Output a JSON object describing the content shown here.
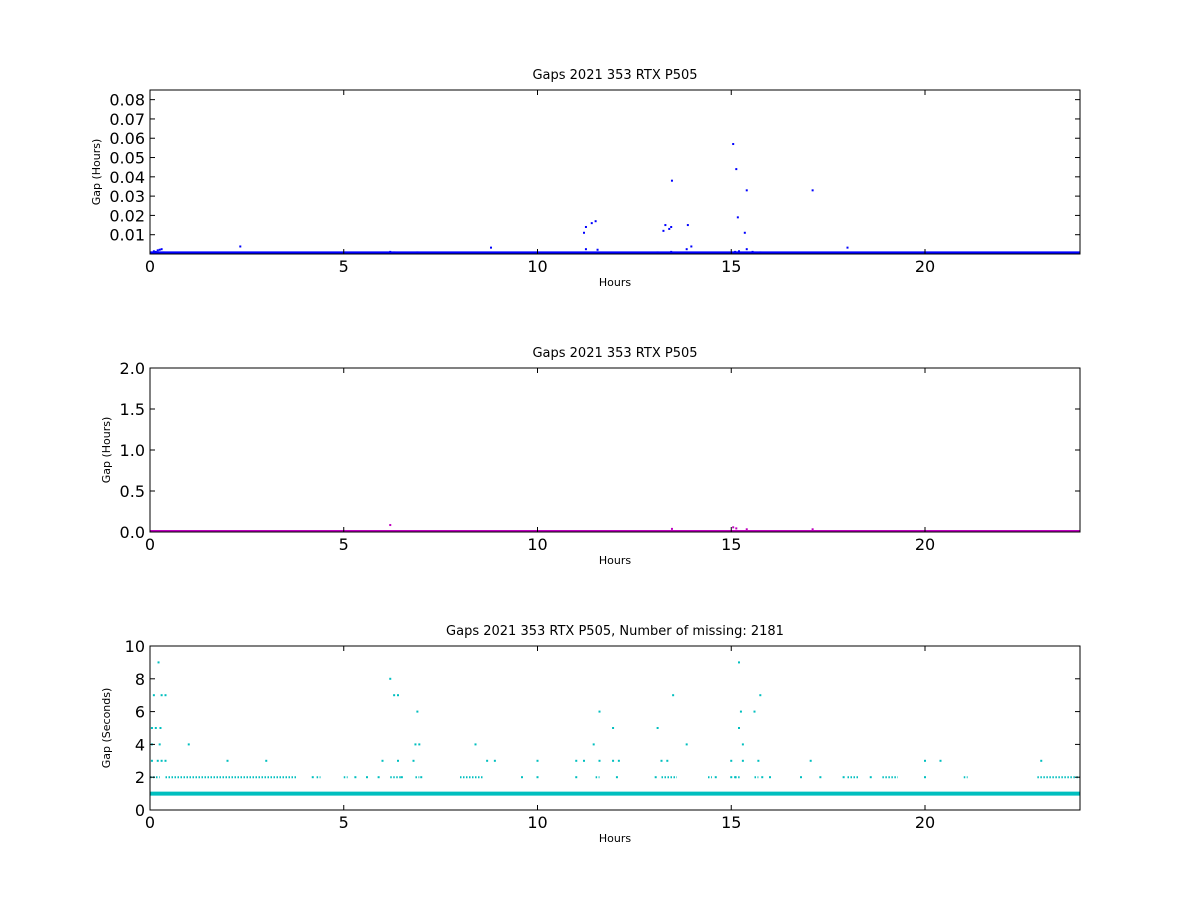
{
  "chart_data": [
    {
      "type": "scatter",
      "title": "Gaps 2021 353 RTX  P505",
      "xlabel": "Hours",
      "ylabel": "Gap (Hours)",
      "xlim": [
        0,
        24
      ],
      "ylim": [
        0,
        0.085
      ],
      "xticks": [
        0,
        5,
        10,
        15,
        20
      ],
      "xtick_labels": [
        "0",
        "5",
        "10",
        "15",
        "20"
      ],
      "yticks": [
        0.01,
        0.02,
        0.03,
        0.04,
        0.05,
        0.06,
        0.07,
        0.08
      ],
      "ytick_labels": [
        "0.01",
        "0.02",
        "0.03",
        "0.04",
        "0.05",
        "0.06",
        "0.07",
        "0.08"
      ],
      "grid": false,
      "color": "#0000ff",
      "baseline": {
        "y": 0.0003,
        "x_range": [
          0,
          24
        ]
      },
      "points": [
        {
          "x": 0.05,
          "y": 0.0008
        },
        {
          "x": 0.1,
          "y": 0.0014
        },
        {
          "x": 0.15,
          "y": 0.0011
        },
        {
          "x": 0.2,
          "y": 0.0019
        },
        {
          "x": 0.25,
          "y": 0.0022
        },
        {
          "x": 0.3,
          "y": 0.0025
        },
        {
          "x": 0.35,
          "y": 0.0008
        },
        {
          "x": 2.33,
          "y": 0.0039
        },
        {
          "x": 6.2,
          "y": 0.0011
        },
        {
          "x": 6.3,
          "y": 0.0008
        },
        {
          "x": 6.9,
          "y": 0.0008
        },
        {
          "x": 8.8,
          "y": 0.0033
        },
        {
          "x": 11.2,
          "y": 0.011
        },
        {
          "x": 11.25,
          "y": 0.014
        },
        {
          "x": 11.25,
          "y": 0.0025
        },
        {
          "x": 11.4,
          "y": 0.016
        },
        {
          "x": 11.5,
          "y": 0.017
        },
        {
          "x": 11.55,
          "y": 0.0022
        },
        {
          "x": 11.55,
          "y": 0.0008
        },
        {
          "x": 11.95,
          "y": 0.0006
        },
        {
          "x": 13.1,
          "y": 0.0008
        },
        {
          "x": 13.25,
          "y": 0.012
        },
        {
          "x": 13.3,
          "y": 0.015
        },
        {
          "x": 13.4,
          "y": 0.013
        },
        {
          "x": 13.45,
          "y": 0.014
        },
        {
          "x": 13.45,
          "y": 0.0011
        },
        {
          "x": 13.47,
          "y": 0.038
        },
        {
          "x": 13.85,
          "y": 0.0025
        },
        {
          "x": 13.88,
          "y": 0.015
        },
        {
          "x": 13.97,
          "y": 0.0039
        },
        {
          "x": 15.05,
          "y": 0.057
        },
        {
          "x": 15.1,
          "y": 0.0011
        },
        {
          "x": 15.13,
          "y": 0.044
        },
        {
          "x": 15.17,
          "y": 0.019
        },
        {
          "x": 15.2,
          "y": 0.0014
        },
        {
          "x": 15.35,
          "y": 0.011
        },
        {
          "x": 15.4,
          "y": 0.033
        },
        {
          "x": 15.4,
          "y": 0.0025
        },
        {
          "x": 15.55,
          "y": 0.0011
        },
        {
          "x": 15.75,
          "y": 0.0008
        },
        {
          "x": 17.1,
          "y": 0.033
        },
        {
          "x": 18.0,
          "y": 0.0033
        }
      ]
    },
    {
      "type": "scatter",
      "title": "Gaps 2021 353 RTX  P505",
      "xlabel": "Hours",
      "ylabel": "Gap (Hours)",
      "xlim": [
        0,
        24
      ],
      "ylim": [
        0,
        2.0
      ],
      "xticks": [
        0,
        5,
        10,
        15,
        20
      ],
      "xtick_labels": [
        "0",
        "5",
        "10",
        "15",
        "20"
      ],
      "yticks": [
        0.0,
        0.5,
        1.0,
        1.5,
        2.0
      ],
      "ytick_labels": [
        "0.0",
        "0.5",
        "1.0",
        "1.5",
        "2.0"
      ],
      "grid": false,
      "color": "#bf00bf",
      "baseline": {
        "y": 0.0003,
        "x_range": [
          0,
          24
        ]
      },
      "points": [
        {
          "x": 6.2,
          "y": 0.085
        },
        {
          "x": 13.47,
          "y": 0.038
        },
        {
          "x": 15.05,
          "y": 0.057
        },
        {
          "x": 15.13,
          "y": 0.044
        },
        {
          "x": 15.4,
          "y": 0.033
        },
        {
          "x": 17.1,
          "y": 0.033
        }
      ]
    },
    {
      "type": "scatter",
      "title": "Gaps 2021 353 RTX  P505, Number of missing: 2181",
      "xlabel": "Hours",
      "ylabel": "Gap (Seconds)",
      "xlim": [
        0,
        24
      ],
      "ylim": [
        0,
        10
      ],
      "xticks": [
        0,
        5,
        10,
        15,
        20
      ],
      "xtick_labels": [
        "0",
        "5",
        "10",
        "15",
        "20"
      ],
      "yticks": [
        0,
        2,
        4,
        6,
        8,
        10
      ],
      "ytick_labels": [
        "0",
        "2",
        "4",
        "6",
        "8",
        "10"
      ],
      "grid": false,
      "color": "#00bfbf",
      "baseline": {
        "y": 1,
        "x_range": [
          0,
          24
        ]
      },
      "value_2_ranges": [
        [
          0,
          0.25
        ],
        [
          0.4,
          3.8
        ],
        [
          4.3,
          4.4
        ],
        [
          5.0,
          5.1
        ],
        [
          6.2,
          6.5
        ],
        [
          6.85,
          6.95
        ],
        [
          8.0,
          8.6
        ],
        [
          11.5,
          11.6
        ],
        [
          13.2,
          13.6
        ],
        [
          14.4,
          14.5
        ],
        [
          15.1,
          15.25
        ],
        [
          15.6,
          15.7
        ],
        [
          18.0,
          18.3
        ],
        [
          18.9,
          19.3
        ],
        [
          21.0,
          21.1
        ],
        [
          22.9,
          24.0
        ]
      ],
      "points": [
        {
          "x": 0.05,
          "y": 3
        },
        {
          "x": 0.05,
          "y": 4
        },
        {
          "x": 0.05,
          "y": 5
        },
        {
          "x": 0.1,
          "y": 7
        },
        {
          "x": 0.15,
          "y": 5
        },
        {
          "x": 0.2,
          "y": 3
        },
        {
          "x": 0.22,
          "y": 9
        },
        {
          "x": 0.25,
          "y": 4
        },
        {
          "x": 0.27,
          "y": 5
        },
        {
          "x": 0.3,
          "y": 3
        },
        {
          "x": 0.3,
          "y": 7
        },
        {
          "x": 0.4,
          "y": 7
        },
        {
          "x": 0.4,
          "y": 3
        },
        {
          "x": 1.0,
          "y": 4
        },
        {
          "x": 2.0,
          "y": 3
        },
        {
          "x": 3.0,
          "y": 3
        },
        {
          "x": 6.0,
          "y": 3
        },
        {
          "x": 6.2,
          "y": 8
        },
        {
          "x": 6.3,
          "y": 7
        },
        {
          "x": 6.4,
          "y": 7
        },
        {
          "x": 6.4,
          "y": 3
        },
        {
          "x": 6.5,
          "y": 2
        },
        {
          "x": 6.8,
          "y": 3
        },
        {
          "x": 6.85,
          "y": 4
        },
        {
          "x": 6.9,
          "y": 6
        },
        {
          "x": 6.95,
          "y": 4
        },
        {
          "x": 8.4,
          "y": 4
        },
        {
          "x": 8.7,
          "y": 3
        },
        {
          "x": 8.9,
          "y": 3
        },
        {
          "x": 10.0,
          "y": 3
        },
        {
          "x": 11.0,
          "y": 3
        },
        {
          "x": 11.2,
          "y": 3
        },
        {
          "x": 11.45,
          "y": 4
        },
        {
          "x": 11.6,
          "y": 6
        },
        {
          "x": 11.6,
          "y": 3
        },
        {
          "x": 11.95,
          "y": 5
        },
        {
          "x": 11.95,
          "y": 3
        },
        {
          "x": 12.1,
          "y": 3
        },
        {
          "x": 13.1,
          "y": 5
        },
        {
          "x": 13.2,
          "y": 3
        },
        {
          "x": 13.35,
          "y": 3
        },
        {
          "x": 13.5,
          "y": 7
        },
        {
          "x": 13.85,
          "y": 4
        },
        {
          "x": 15.0,
          "y": 3
        },
        {
          "x": 15.1,
          "y": 2
        },
        {
          "x": 15.2,
          "y": 9
        },
        {
          "x": 15.2,
          "y": 5
        },
        {
          "x": 15.25,
          "y": 6
        },
        {
          "x": 15.3,
          "y": 4
        },
        {
          "x": 15.3,
          "y": 3
        },
        {
          "x": 15.6,
          "y": 6
        },
        {
          "x": 15.7,
          "y": 3
        },
        {
          "x": 15.75,
          "y": 7
        },
        {
          "x": 17.05,
          "y": 3
        },
        {
          "x": 20.0,
          "y": 3
        },
        {
          "x": 20.4,
          "y": 3
        },
        {
          "x": 23.0,
          "y": 3
        },
        {
          "x": 4.2,
          "y": 2
        },
        {
          "x": 5.3,
          "y": 2
        },
        {
          "x": 5.6,
          "y": 2
        },
        {
          "x": 5.9,
          "y": 2
        },
        {
          "x": 7.0,
          "y": 2
        },
        {
          "x": 9.6,
          "y": 2
        },
        {
          "x": 10.0,
          "y": 2
        },
        {
          "x": 11.0,
          "y": 2
        },
        {
          "x": 12.05,
          "y": 2
        },
        {
          "x": 13.05,
          "y": 2
        },
        {
          "x": 14.6,
          "y": 2
        },
        {
          "x": 15.0,
          "y": 2
        },
        {
          "x": 15.8,
          "y": 2
        },
        {
          "x": 16.0,
          "y": 2
        },
        {
          "x": 16.8,
          "y": 2
        },
        {
          "x": 17.3,
          "y": 2
        },
        {
          "x": 17.9,
          "y": 2
        },
        {
          "x": 18.6,
          "y": 2
        },
        {
          "x": 20.0,
          "y": 2
        }
      ]
    }
  ]
}
